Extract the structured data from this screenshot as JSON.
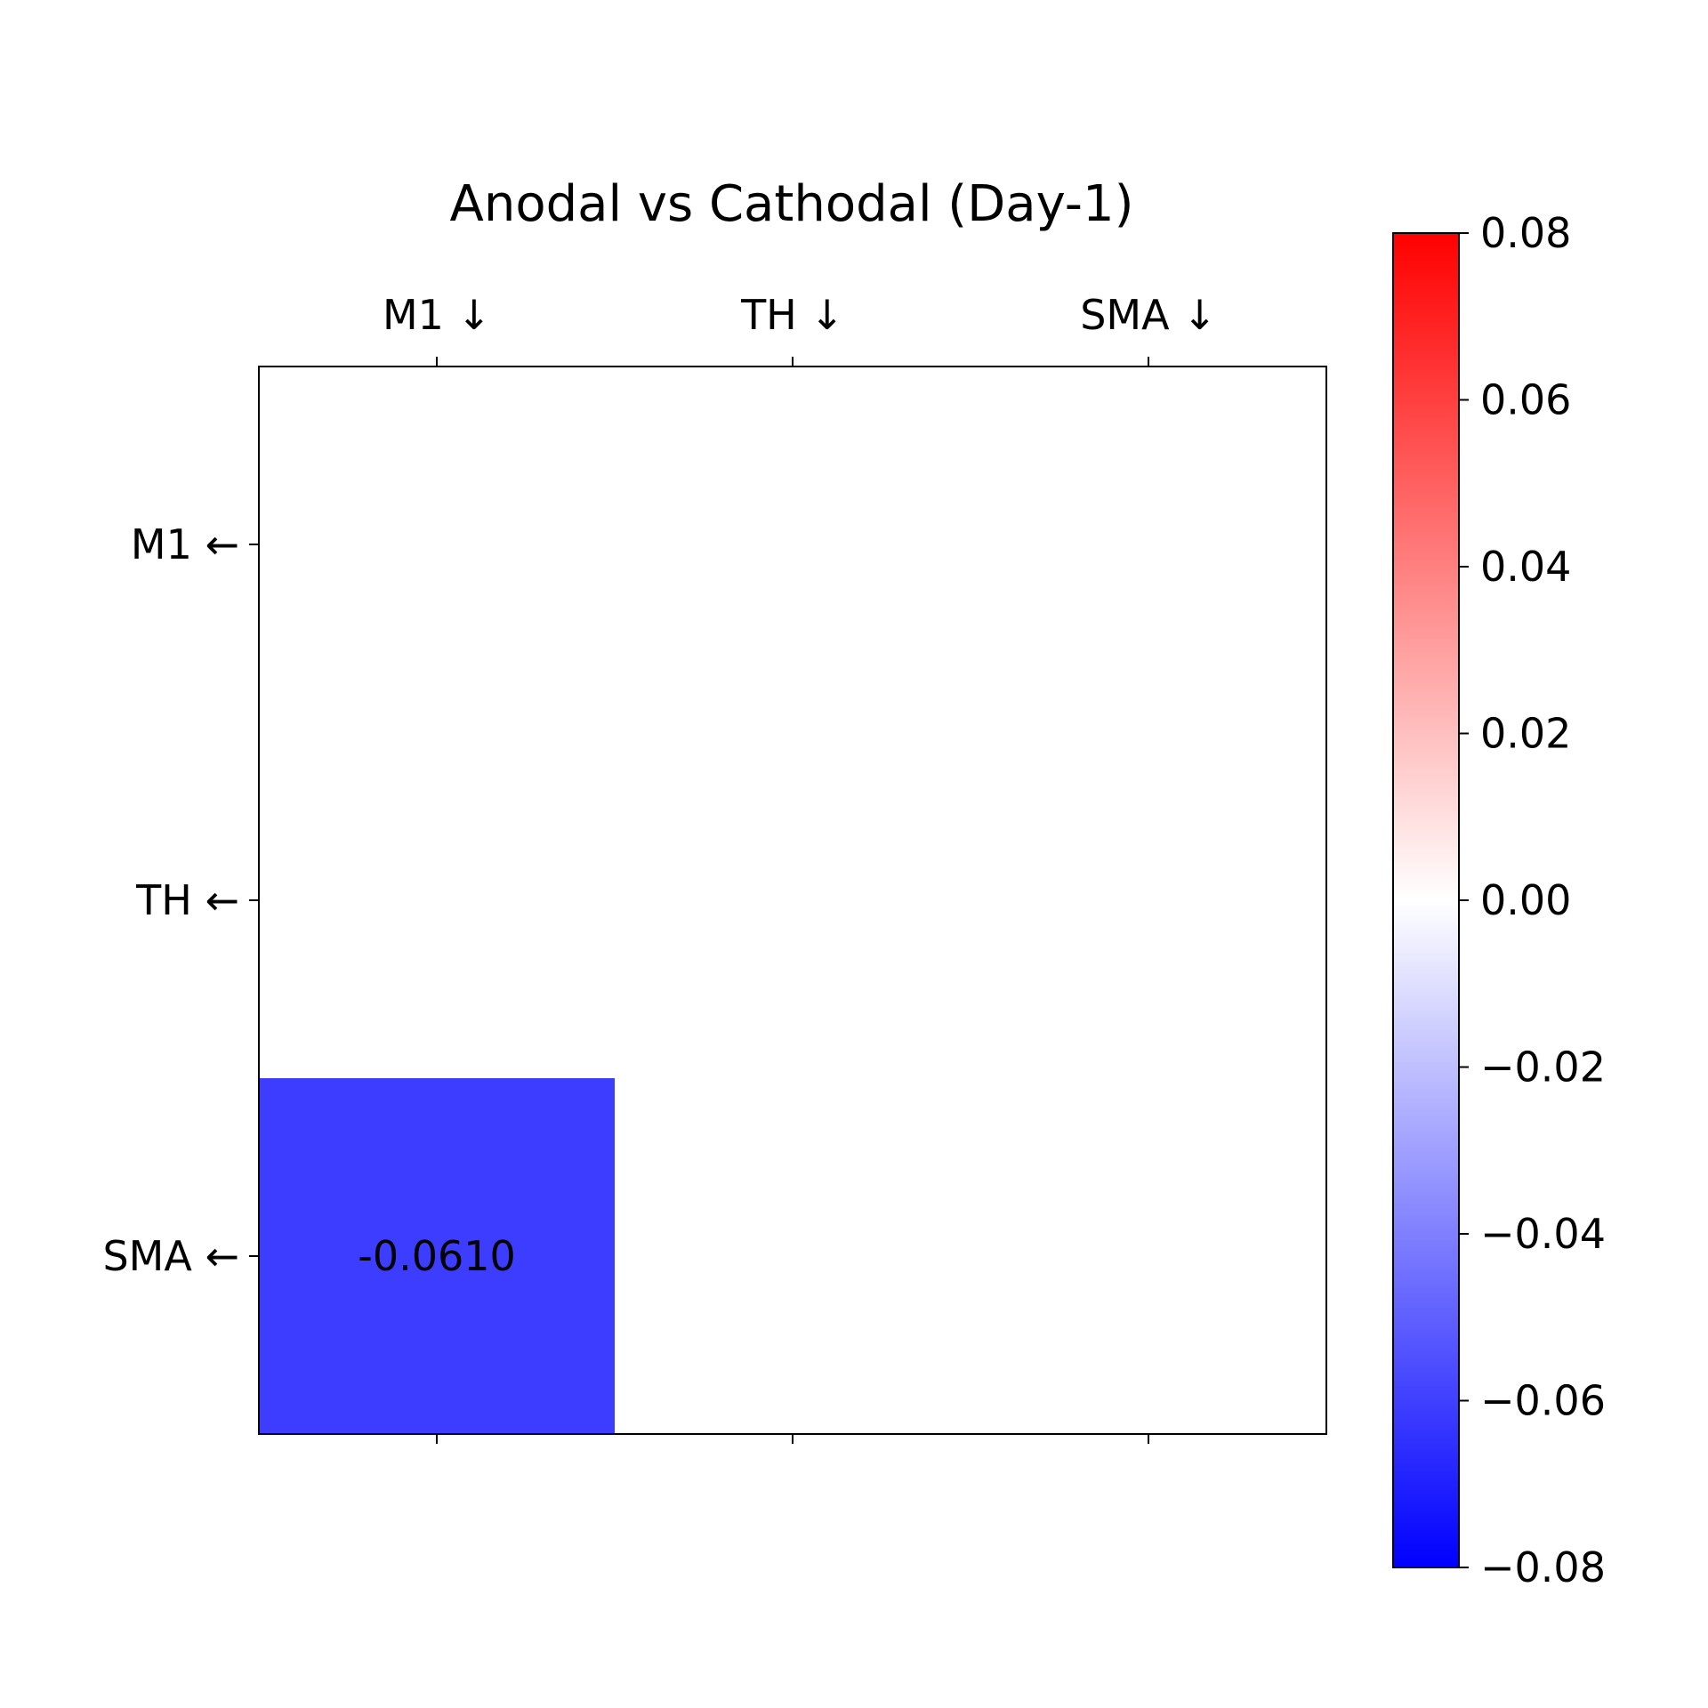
{
  "chart_data": {
    "type": "heatmap",
    "title": "Anodal vs Cathodal (Day-1)",
    "x_categories": [
      "M1 ↓",
      "TH ↓",
      "SMA ↓"
    ],
    "y_categories": [
      "M1 ←",
      "TH ←",
      "SMA ←"
    ],
    "values": [
      [
        0,
        0,
        0
      ],
      [
        0,
        0,
        0
      ],
      [
        -0.061,
        0,
        0
      ]
    ],
    "cell_labels": [
      [
        "",
        "",
        ""
      ],
      [
        "",
        "",
        ""
      ],
      [
        "-0.0610",
        "",
        ""
      ]
    ],
    "colormap": "bwr",
    "colorbar": {
      "range": [
        -0.08,
        0.08
      ],
      "ticks": [
        0.08,
        0.06,
        0.04,
        0.02,
        0.0,
        -0.02,
        -0.04,
        -0.06,
        -0.08
      ],
      "tick_labels": [
        "0.08",
        "0.06",
        "0.04",
        "0.02",
        "0.00",
        "−0.02",
        "−0.04",
        "−0.06",
        "−0.08"
      ],
      "position": "right"
    },
    "x_axis_position": "top",
    "grid": false,
    "colors": {
      "negative_end": "#0000ff",
      "zero": "#ffffff",
      "positive_end": "#ff0000"
    }
  }
}
